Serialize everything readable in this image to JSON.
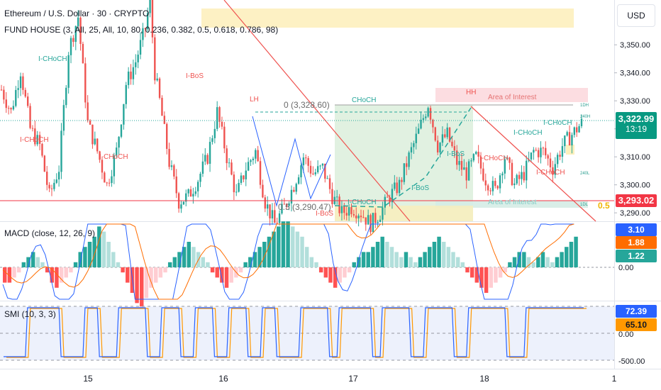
{
  "header": {
    "title": "Ethereum / U.S. Dollar · 30 · CRYPTO",
    "indicator": "FUND HOUSE (3, All, 25, All, 10, 80, 0.236, 0.382, 0.5, 0.618, 0.786, 98)",
    "currency_button": "USD"
  },
  "colors": {
    "up": "#26a69a",
    "down": "#ef5350",
    "macd_line": "#2962ff",
    "signal_line": "#ff6d00",
    "smi_line": "#2962ff",
    "smi_signal": "#ff9800",
    "price_tag": "#089981",
    "level_tag": "#f23645"
  },
  "price_tags": {
    "last_price": "3,322.99",
    "countdown": "13:19",
    "level": "3,293.02"
  },
  "macd_tags": {
    "macd": "3.10",
    "signal": "1.88",
    "hist": "1.22",
    "zero": "0.00"
  },
  "smi_tags": {
    "smi": "72.39",
    "signal": "65.10",
    "zero": "0.00",
    "low": "-500.00"
  },
  "chart_data": [
    {
      "type": "candlestick",
      "pane": "price",
      "y_axis_ticks": [
        "3,350.00",
        "3,340.00",
        "3,330.00",
        "3,320.00",
        "3,310.00",
        "3,300.00",
        "3,290.00"
      ],
      "y_axis_values": [
        3350,
        3340,
        3330,
        3320,
        3310,
        3300,
        3290
      ],
      "ylim": [
        3287,
        3366
      ],
      "x_ticks": [
        "15",
        "16",
        "17",
        "18",
        "1"
      ],
      "path_points": [
        [
          0,
          3334
        ],
        [
          4,
          3326
        ],
        [
          8,
          3341
        ],
        [
          12,
          3320
        ],
        [
          16,
          3314
        ],
        [
          20,
          3296
        ],
        [
          24,
          3306
        ],
        [
          28,
          3348
        ],
        [
          32,
          3360
        ],
        [
          36,
          3322
        ],
        [
          40,
          3312
        ],
        [
          44,
          3300
        ],
        [
          48,
          3312
        ],
        [
          52,
          3336
        ],
        [
          56,
          3344
        ],
        [
          60,
          3356
        ],
        [
          62,
          3366
        ],
        [
          64,
          3340
        ],
        [
          66,
          3330
        ],
        [
          70,
          3308
        ],
        [
          74,
          3294
        ],
        [
          78,
          3296
        ],
        [
          82,
          3302
        ],
        [
          86,
          3310
        ],
        [
          90,
          3326
        ],
        [
          94,
          3310
        ],
        [
          98,
          3296
        ],
        [
          102,
          3306
        ],
        [
          106,
          3312
        ],
        [
          110,
          3294
        ],
        [
          114,
          3286
        ],
        [
          118,
          3292
        ],
        [
          122,
          3300
        ],
        [
          126,
          3310
        ],
        [
          130,
          3304
        ],
        [
          134,
          3306
        ],
        [
          138,
          3296
        ],
        [
          142,
          3290
        ],
        [
          146,
          3292
        ],
        [
          150,
          3290
        ],
        [
          154,
          3286
        ],
        [
          158,
          3290
        ],
        [
          162,
          3296
        ],
        [
          166,
          3300
        ],
        [
          170,
          3310
        ],
        [
          174,
          3319
        ],
        [
          178,
          3329
        ],
        [
          182,
          3314
        ],
        [
          186,
          3318
        ],
        [
          190,
          3308
        ],
        [
          194,
          3304
        ],
        [
          198,
          3310
        ],
        [
          202,
          3302
        ],
        [
          206,
          3298
        ],
        [
          210,
          3310
        ],
        [
          214,
          3300
        ],
        [
          218,
          3304
        ],
        [
          222,
          3312
        ],
        [
          226,
          3312
        ],
        [
          230,
          3306
        ],
        [
          234,
          3314
        ],
        [
          238,
          3318
        ],
        [
          242,
          3322
        ]
      ],
      "annotations": {
        "zone_top": "",
        "fib_0": "0 (3,328.60)",
        "fib_05": "0.5 (3,290.47)",
        "fib_05_right": "0.5",
        "lh": "LH",
        "hh": "HH",
        "choch_main": "CHoCH",
        "area_interest_top": "Area of Interest",
        "area_interest_bottom": "Area of Interest",
        "labels": [
          {
            "text": "I-CHoCH",
            "color": "#26a69a"
          },
          {
            "text": "I-BoS",
            "color": "#ef5350"
          },
          {
            "text": "I-CHoCH",
            "color": "#ef5350"
          },
          {
            "text": "I-CHoCH",
            "color": "#ef5350"
          },
          {
            "text": "I-BoS",
            "color": "#ef5350"
          },
          {
            "text": "I-CHoCH",
            "color": "#26a69a"
          },
          {
            "text": "I-BoS",
            "color": "#26a69a"
          },
          {
            "text": "I-BoS",
            "color": "#26a69a"
          },
          {
            "text": "I-CHoCH",
            "color": "#ef5350"
          },
          {
            "text": "I-CHoCH",
            "color": "#26a69a"
          },
          {
            "text": "I-CHoCH",
            "color": "#26a69a"
          },
          {
            "text": "I-CHoCH",
            "color": "#ef5350"
          }
        ],
        "tiny_labels": [
          "1DH",
          "240H",
          "240L",
          "1DL"
        ]
      }
    },
    {
      "type": "bar",
      "pane": "macd",
      "title": "MACD (close, 12, 26, 9)",
      "hist": [
        -3,
        -3,
        -2,
        -1,
        1,
        2,
        3,
        2,
        1,
        -1,
        -3,
        -4,
        -3,
        -2,
        -1,
        1,
        3,
        4,
        5,
        6,
        8,
        7,
        5,
        3,
        1,
        -1,
        -3,
        -5,
        -7,
        -8,
        -6,
        -4,
        -3,
        -2,
        -1,
        1,
        2,
        3,
        4,
        5,
        4,
        3,
        2,
        1,
        -1,
        -2,
        -3,
        -4,
        -3,
        -2,
        -1,
        1,
        2,
        3,
        4,
        5,
        6,
        7,
        8,
        9,
        9,
        8,
        7,
        6,
        4,
        2,
        1,
        -1,
        -2,
        -3,
        -4,
        -3,
        -2,
        -1,
        1,
        2,
        3,
        3,
        4,
        5,
        6,
        5,
        4,
        3,
        2,
        3,
        2,
        1,
        2,
        3,
        4,
        5,
        6,
        5,
        4,
        3,
        2,
        1,
        -1,
        -2,
        -3,
        -4,
        -5,
        -4,
        -3,
        -2,
        -1,
        1,
        2,
        3,
        3,
        2,
        1,
        2,
        3,
        2,
        1,
        2,
        3,
        4,
        5,
        6
      ]
    },
    {
      "type": "line",
      "pane": "smi",
      "title": "SMI (10, 3, 3)",
      "segments": [
        [
          0,
          "lo"
        ],
        [
          10,
          "hi"
        ],
        [
          24,
          "lo"
        ],
        [
          34,
          "hi"
        ],
        [
          40,
          "lo"
        ],
        [
          48,
          "hi"
        ],
        [
          60,
          "lo"
        ],
        [
          66,
          "hi"
        ],
        [
          74,
          "lo"
        ],
        [
          80,
          "hi"
        ],
        [
          88,
          "lo"
        ],
        [
          94,
          "hi"
        ],
        [
          102,
          "lo"
        ],
        [
          108,
          "hi"
        ],
        [
          114,
          "lo"
        ],
        [
          124,
          "hi"
        ],
        [
          136,
          "lo"
        ],
        [
          140,
          "hi"
        ],
        [
          154,
          "lo"
        ],
        [
          158,
          "hi"
        ],
        [
          170,
          "lo"
        ],
        [
          176,
          "hi"
        ],
        [
          188,
          "lo"
        ],
        [
          194,
          "hi"
        ],
        [
          210,
          "lo"
        ],
        [
          218,
          "hi"
        ],
        [
          242,
          "hi"
        ]
      ]
    }
  ]
}
